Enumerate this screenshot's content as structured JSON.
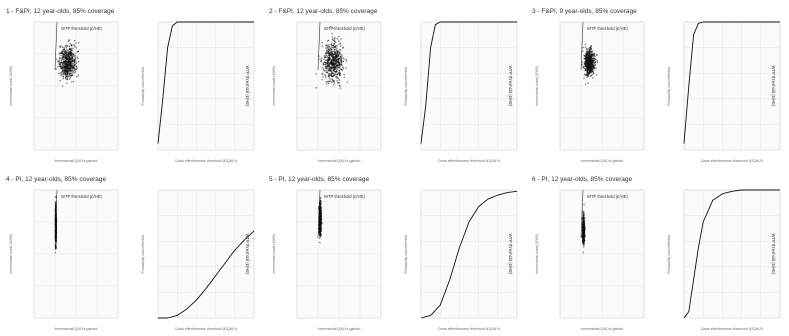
{
  "figure": {
    "panels": [
      {
        "title": "1 - F&PI, 12 year-olds, 85% coverage"
      },
      {
        "title": "2 - F&PI, 12 year-olds, 85% coverage"
      },
      {
        "title": "3 - F&PI, 9 year-olds, 85% coverage"
      },
      {
        "title": "4 - PI, 12 year-olds, 85% coverage"
      },
      {
        "title": "5 - PI, 12 year-olds, 85% coverage"
      },
      {
        "title": "6 - PI, 12 year-olds, 85% coverage"
      }
    ],
    "scatter_annotation": "WTP threshold (£/HE)",
    "ceac_annotation": "WTP threshold (£/HE)",
    "scatter_xlabel": "Incremental QALYs gained",
    "scatter_ylabel": "Incremental costs (£000)",
    "ceac_xlabel": "Costs effectiveness threshold (£/QALY)",
    "ceac_ylabel": "Probability cost-effective"
  },
  "colors": {
    "points": "#111111",
    "curve": "#111111",
    "grid": "#e4e4e4",
    "axis_text": "#666666"
  },
  "chart_data": [
    {
      "id": "panel-1",
      "scatter": {
        "type": "scatter",
        "cloud": {
          "cx": 0.3,
          "cy": 0.05,
          "sx": 0.1,
          "sy": 0.05
        },
        "xlim": [
          -0.5,
          1.5
        ],
        "ylim": [
          -0.5,
          0.3
        ]
      },
      "ceac": {
        "type": "line",
        "x": [
          0,
          0.05,
          0.1,
          0.15,
          0.2,
          0.3,
          0.4,
          1.0
        ],
        "y": [
          0.05,
          0.4,
          0.8,
          0.97,
          1.0,
          1.0,
          1.0,
          1.0
        ],
        "xlim": [
          0,
          1
        ],
        "ylim": [
          0,
          1
        ]
      }
    },
    {
      "id": "panel-2",
      "scatter": {
        "type": "scatter",
        "cloud": {
          "cx": 0.35,
          "cy": 0.05,
          "sx": 0.12,
          "sy": 0.06
        },
        "xlim": [
          -0.5,
          1.5
        ],
        "ylim": [
          -0.5,
          0.3
        ]
      },
      "ceac": {
        "type": "line",
        "x": [
          0,
          0.05,
          0.1,
          0.15,
          0.2,
          0.3,
          1.0
        ],
        "y": [
          0.05,
          0.35,
          0.8,
          0.98,
          1.0,
          1.0,
          1.0
        ],
        "xlim": [
          0,
          1
        ],
        "ylim": [
          0,
          1
        ]
      }
    },
    {
      "id": "panel-3",
      "scatter": {
        "type": "scatter",
        "cloud": {
          "cx": 0.2,
          "cy": 0.05,
          "sx": 0.06,
          "sy": 0.04
        },
        "xlim": [
          -0.5,
          1.5
        ],
        "ylim": [
          -0.5,
          0.3
        ]
      },
      "ceac": {
        "type": "line",
        "x": [
          0,
          0.05,
          0.1,
          0.15,
          0.2,
          1.0
        ],
        "y": [
          0.05,
          0.5,
          0.9,
          0.99,
          1.0,
          1.0
        ],
        "xlim": [
          0,
          1
        ],
        "ylim": [
          0,
          1
        ]
      }
    },
    {
      "id": "panel-4",
      "scatter": {
        "type": "scatter",
        "cloud": {
          "cx": 0.02,
          "cy": 0.08,
          "sx": 0.005,
          "sy": 0.06
        },
        "xlim": [
          -0.5,
          1.5
        ],
        "ylim": [
          -0.5,
          0.3
        ]
      },
      "ceac": {
        "type": "line",
        "x": [
          0,
          0.1,
          0.2,
          0.3,
          0.4,
          0.5,
          0.6,
          0.7,
          0.8,
          0.9,
          1.0
        ],
        "y": [
          0,
          0,
          0.02,
          0.07,
          0.14,
          0.23,
          0.33,
          0.43,
          0.53,
          0.61,
          0.68
        ],
        "xlim": [
          0,
          1
        ],
        "ylim": [
          0,
          1
        ]
      }
    },
    {
      "id": "panel-5",
      "scatter": {
        "type": "scatter",
        "cloud": {
          "cx": 0.05,
          "cy": 0.12,
          "sx": 0.012,
          "sy": 0.05
        },
        "xlim": [
          -0.5,
          1.5
        ],
        "ylim": [
          -0.5,
          0.3
        ]
      },
      "ceac": {
        "type": "line",
        "x": [
          0,
          0.1,
          0.2,
          0.3,
          0.4,
          0.5,
          0.6,
          0.7,
          0.8,
          0.9,
          1.0
        ],
        "y": [
          0,
          0.02,
          0.1,
          0.3,
          0.55,
          0.75,
          0.87,
          0.93,
          0.96,
          0.98,
          0.99
        ],
        "xlim": [
          0,
          1
        ],
        "ylim": [
          0,
          1
        ]
      }
    },
    {
      "id": "panel-6",
      "scatter": {
        "type": "scatter",
        "cloud": {
          "cx": 0.06,
          "cy": 0.05,
          "sx": 0.012,
          "sy": 0.04
        },
        "xlim": [
          -0.5,
          1.5
        ],
        "ylim": [
          -0.5,
          0.3
        ]
      },
      "ceac": {
        "type": "line",
        "x": [
          0,
          0.05,
          0.1,
          0.15,
          0.2,
          0.3,
          0.4,
          0.5,
          0.6,
          0.8,
          1.0
        ],
        "y": [
          0,
          0.05,
          0.3,
          0.55,
          0.75,
          0.92,
          0.97,
          0.99,
          1.0,
          1.0,
          1.0
        ],
        "xlim": [
          0,
          1
        ],
        "ylim": [
          0,
          1
        ]
      }
    }
  ]
}
